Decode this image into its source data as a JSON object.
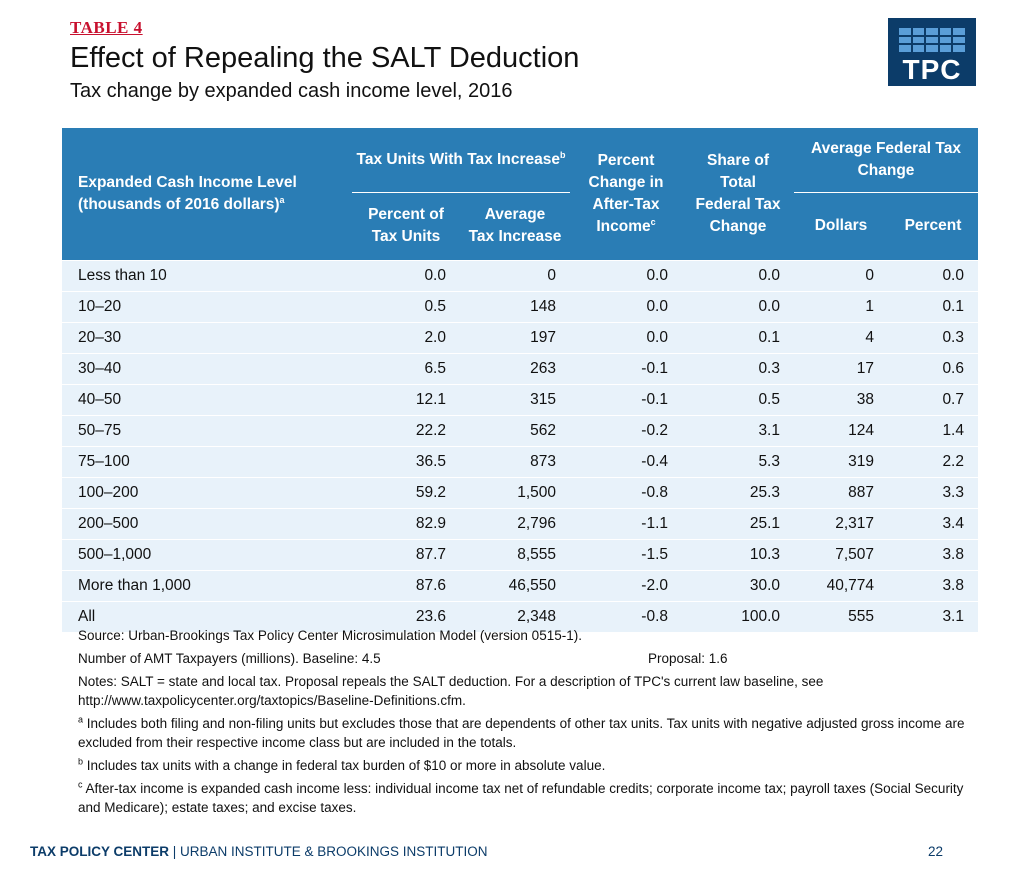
{
  "header": {
    "table_label": "TABLE 4",
    "title": "Effect of Repealing the SALT Deduction",
    "subtitle": "Tax change by expanded cash income level, 2016"
  },
  "logo": {
    "text": "TPC"
  },
  "table": {
    "columns": {
      "income_level_line1": "Expanded Cash Income Level",
      "income_level_line2": "(thousands of 2016 dollars)",
      "income_level_sup": "a",
      "tax_increase_group": "Tax Units With Tax Increase",
      "tax_increase_sup": "b",
      "pct_units_line1": "Percent of",
      "pct_units_line2": "Tax Units",
      "avg_increase_line1": "Average",
      "avg_increase_line2": "Tax Increase",
      "pct_change_line1": "Percent",
      "pct_change_line2": "Change in",
      "pct_change_line3": "After-Tax",
      "pct_change_line4": "Income",
      "pct_change_sup": "c",
      "share_line1": "Share of",
      "share_line2": "Total",
      "share_line3": "Federal Tax",
      "share_line4": "Change",
      "avg_fed_group": "Average Federal Tax Change",
      "dollars": "Dollars",
      "percent": "Percent"
    },
    "rows": [
      [
        "Less than 10",
        "0.0",
        "0",
        "0.0",
        "0.0",
        "0",
        "0.0"
      ],
      [
        "10–20",
        "0.5",
        "148",
        "0.0",
        "0.0",
        "1",
        "0.1"
      ],
      [
        "20–30",
        "2.0",
        "197",
        "0.0",
        "0.1",
        "4",
        "0.3"
      ],
      [
        "30–40",
        "6.5",
        "263",
        "-0.1",
        "0.3",
        "17",
        "0.6"
      ],
      [
        "40–50",
        "12.1",
        "315",
        "-0.1",
        "0.5",
        "38",
        "0.7"
      ],
      [
        "50–75",
        "22.2",
        "562",
        "-0.2",
        "3.1",
        "124",
        "1.4"
      ],
      [
        "75–100",
        "36.5",
        "873",
        "-0.4",
        "5.3",
        "319",
        "2.2"
      ],
      [
        "100–200",
        "59.2",
        "1,500",
        "-0.8",
        "25.3",
        "887",
        "3.3"
      ],
      [
        "200–500",
        "82.9",
        "2,796",
        "-1.1",
        "25.1",
        "2,317",
        "3.4"
      ],
      [
        "500–1,000",
        "87.7",
        "8,555",
        "-1.5",
        "10.3",
        "7,507",
        "3.8"
      ],
      [
        "More than 1,000",
        "87.6",
        "46,550",
        "-2.0",
        "30.0",
        "40,774",
        "3.8"
      ],
      [
        "All",
        "23.6",
        "2,348",
        "-0.8",
        "100.0",
        "555",
        "3.1"
      ]
    ]
  },
  "notes": {
    "source": "Source: Urban-Brookings Tax Policy Center Microsimulation Model (version 0515-1).",
    "amt_baseline": "Number of AMT Taxpayers (millions).  Baseline: 4.5",
    "amt_proposal": "Proposal: 1.6",
    "notes_text": "Notes: SALT = state and local tax. Proposal repeals the SALT deduction. For a description of TPC's current law baseline, see http://www.taxpolicycenter.org/taxtopics/Baseline-Definitions.cfm.",
    "fn_a_marker": "a",
    "fn_a": " Includes both filing and non-filing units but excludes those that are dependents of other tax units. Tax units with negative adjusted gross income are excluded from their respective income class but are included in the totals.",
    "fn_b_marker": "b",
    "fn_b": " Includes tax units with a change in federal tax burden of $10 or more in absolute value.",
    "fn_c_marker": "c",
    "fn_c": " After-tax income is expanded cash income less: individual income tax net of refundable credits; corporate income tax; payroll taxes (Social Security and Medicare); estate taxes; and excise taxes."
  },
  "footer": {
    "brand": "TAX POLICY CENTER",
    "separator": " | ",
    "institutions": "URBAN INSTITUTE & BROOKINGS INSTITUTION",
    "page_number": "22"
  },
  "colors": {
    "header_blue": "#2a7db5",
    "row_light_blue": "#e8f2fa",
    "label_red": "#c8102e",
    "logo_navy": "#0c3c69",
    "logo_tile": "#5a9ed8"
  }
}
